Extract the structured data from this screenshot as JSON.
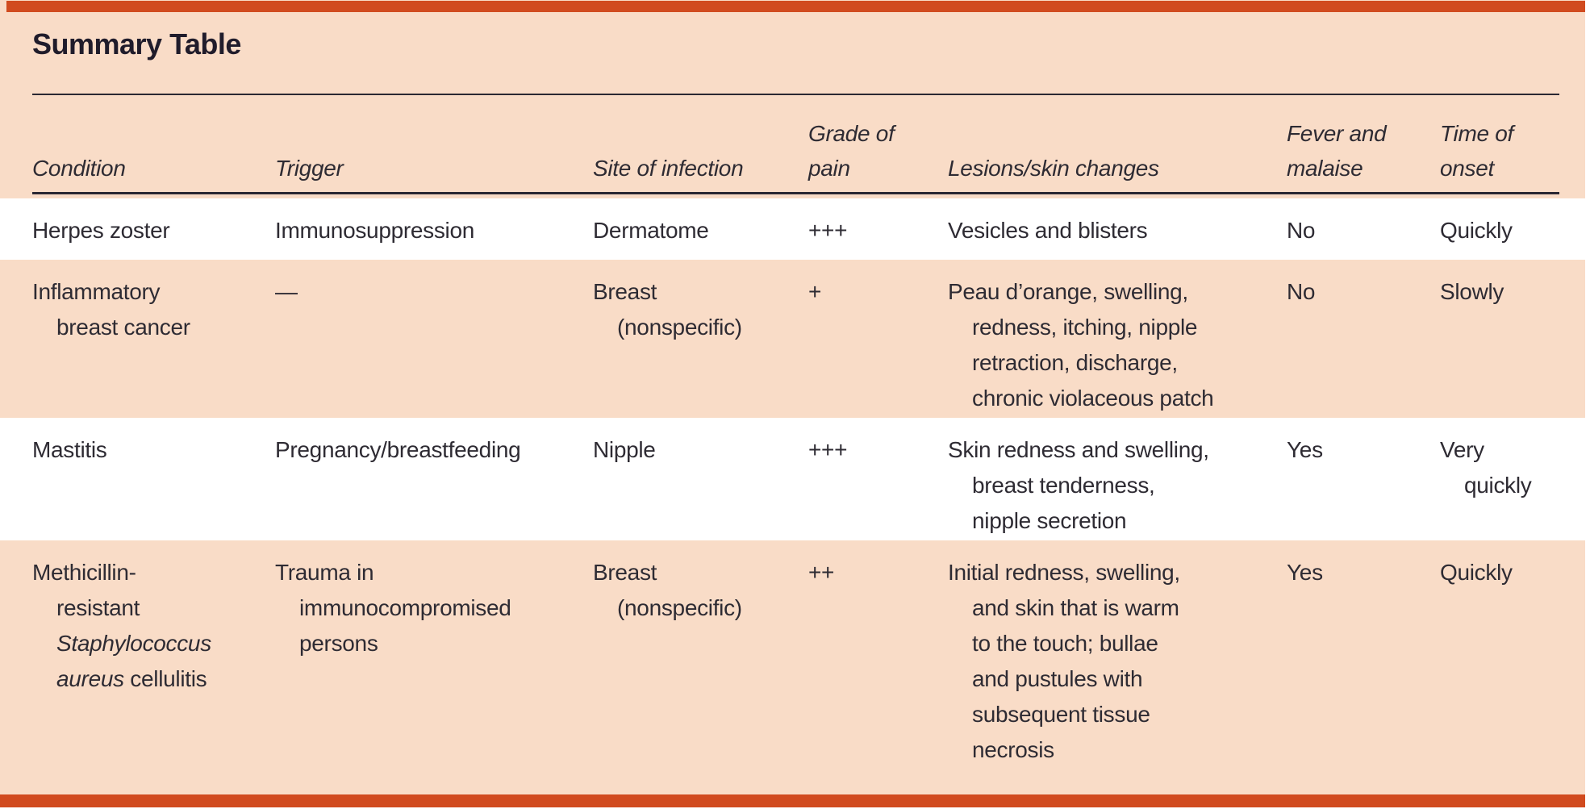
{
  "page": {
    "title": "Summary Table"
  },
  "colors": {
    "accent_bar": "#d14b1f",
    "card_background": "#f9dcc7",
    "row_white": "#ffffff",
    "row_peach": "#f9dcc7",
    "text": "#2e2b33",
    "rule": "#2b2833"
  },
  "table": {
    "columns": [
      {
        "id": "condition",
        "label_lines": [
          [
            {
              "t": "Condition"
            }
          ]
        ]
      },
      {
        "id": "trigger",
        "label_lines": [
          [
            {
              "t": "Trigger"
            }
          ]
        ]
      },
      {
        "id": "site",
        "label_lines": [
          [
            {
              "t": "Site of infection"
            }
          ]
        ]
      },
      {
        "id": "grade",
        "label_lines": [
          [
            {
              "t": "Grade of"
            }
          ],
          [
            {
              "t": "pain"
            }
          ]
        ]
      },
      {
        "id": "lesions",
        "label_lines": [
          [
            {
              "t": "Lesions/skin changes"
            }
          ]
        ]
      },
      {
        "id": "fever",
        "label_lines": [
          [
            {
              "t": "Fever and"
            }
          ],
          [
            {
              "t": "malaise"
            }
          ]
        ]
      },
      {
        "id": "onset",
        "label_lines": [
          [
            {
              "t": "Time of"
            }
          ],
          [
            {
              "t": "onset"
            }
          ]
        ]
      }
    ],
    "rows": [
      {
        "shaded": false,
        "cells": [
          [
            [
              {
                "t": "Herpes zoster"
              }
            ]
          ],
          [
            [
              {
                "t": "Immunosuppression"
              }
            ]
          ],
          [
            [
              {
                "t": "Dermatome"
              }
            ]
          ],
          [
            [
              {
                "t": "+++"
              }
            ]
          ],
          [
            [
              {
                "t": "Vesicles and blisters"
              }
            ]
          ],
          [
            [
              {
                "t": "No"
              }
            ]
          ],
          [
            [
              {
                "t": "Quickly"
              }
            ]
          ]
        ]
      },
      {
        "shaded": true,
        "cells": [
          [
            [
              {
                "t": "Inflammatory"
              }
            ],
            [
              {
                "t": "breast cancer"
              }
            ]
          ],
          [
            [
              {
                "t": "—"
              }
            ]
          ],
          [
            [
              {
                "t": "Breast"
              }
            ],
            [
              {
                "t": "(nonspecific)"
              }
            ]
          ],
          [
            [
              {
                "t": "+"
              }
            ]
          ],
          [
            [
              {
                "t": "Peau d’orange, swelling,"
              }
            ],
            [
              {
                "t": "redness, itching, nipple"
              }
            ],
            [
              {
                "t": "retraction, discharge,"
              }
            ],
            [
              {
                "t": "chronic violaceous patch"
              }
            ]
          ],
          [
            [
              {
                "t": "No"
              }
            ]
          ],
          [
            [
              {
                "t": "Slowly"
              }
            ]
          ]
        ]
      },
      {
        "shaded": false,
        "cells": [
          [
            [
              {
                "t": "Mastitis"
              }
            ]
          ],
          [
            [
              {
                "t": "Pregnancy/breastfeeding"
              }
            ]
          ],
          [
            [
              {
                "t": "Nipple"
              }
            ]
          ],
          [
            [
              {
                "t": "+++"
              }
            ]
          ],
          [
            [
              {
                "t": "Skin redness and swelling,"
              }
            ],
            [
              {
                "t": "breast tenderness,"
              }
            ],
            [
              {
                "t": "nipple secretion"
              }
            ]
          ],
          [
            [
              {
                "t": "Yes"
              }
            ]
          ],
          [
            [
              {
                "t": "Very"
              }
            ],
            [
              {
                "t": "quickly"
              }
            ]
          ]
        ]
      },
      {
        "shaded": true,
        "cells": [
          [
            [
              {
                "t": "Methicillin-"
              }
            ],
            [
              {
                "t": "resistant"
              }
            ],
            [
              {
                "t": "Staphylococcus",
                "i": true
              }
            ],
            [
              {
                "t": "aureus",
                "i": true
              },
              {
                "t": " cellulitis"
              }
            ]
          ],
          [
            [
              {
                "t": "Trauma in"
              }
            ],
            [
              {
                "t": "immunocompromised"
              }
            ],
            [
              {
                "t": "persons"
              }
            ]
          ],
          [
            [
              {
                "t": "Breast"
              }
            ],
            [
              {
                "t": "(nonspecific)"
              }
            ]
          ],
          [
            [
              {
                "t": "++"
              }
            ]
          ],
          [
            [
              {
                "t": "Initial redness, swelling,"
              }
            ],
            [
              {
                "t": "and skin that is warm"
              }
            ],
            [
              {
                "t": "to the touch; bullae"
              }
            ],
            [
              {
                "t": "and pustules with"
              }
            ],
            [
              {
                "t": "subsequent tissue"
              }
            ],
            [
              {
                "t": "necrosis"
              }
            ]
          ],
          [
            [
              {
                "t": "Yes"
              }
            ]
          ],
          [
            [
              {
                "t": "Quickly"
              }
            ]
          ]
        ]
      }
    ]
  }
}
